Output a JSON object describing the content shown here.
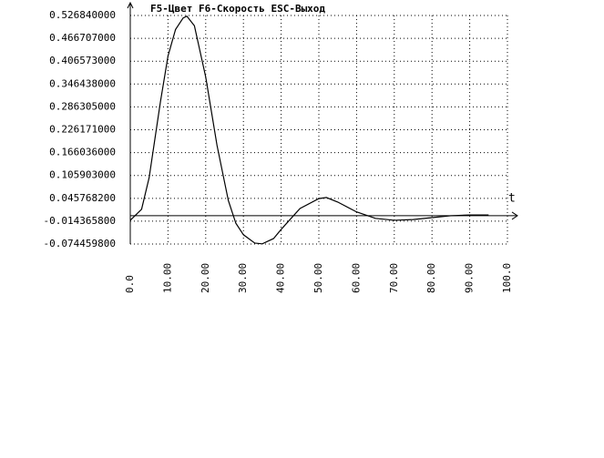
{
  "chart_data": {
    "type": "line",
    "title": "F5-Цвет  F6-Скорость  ESC-Выход",
    "x_label": "t",
    "x": [
      0,
      3,
      5,
      8,
      10,
      12,
      14,
      15,
      17,
      20,
      23,
      26,
      28,
      30,
      33,
      35,
      38,
      40,
      45,
      50,
      52,
      55,
      60,
      65,
      70,
      75,
      80,
      85,
      90,
      95
    ],
    "series": [
      {
        "color": "#000000",
        "values": [
          -0.012,
          0.017,
          0.1,
          0.3,
          0.42,
          0.49,
          0.52,
          0.525,
          0.5,
          0.365,
          0.185,
          0.04,
          -0.02,
          -0.05,
          -0.072,
          -0.074,
          -0.06,
          -0.036,
          0.019,
          0.045,
          0.048,
          0.036,
          0.01,
          -0.007,
          -0.012,
          -0.01,
          -0.005,
          0,
          0.002,
          0.002
        ]
      }
    ],
    "xlim": [
      0,
      100
    ],
    "ylim": [
      -0.0744598,
      0.52684
    ],
    "xticks": [
      {
        "value": 0,
        "label": "0.0"
      },
      {
        "value": 10,
        "label": "10.00"
      },
      {
        "value": 20,
        "label": "20.00"
      },
      {
        "value": 30,
        "label": "30.00"
      },
      {
        "value": 40,
        "label": "40.00"
      },
      {
        "value": 50,
        "label": "50.00"
      },
      {
        "value": 60,
        "label": "60.00"
      },
      {
        "value": 70,
        "label": "70.00"
      },
      {
        "value": 80,
        "label": "80.00"
      },
      {
        "value": 90,
        "label": "90.00"
      },
      {
        "value": 100,
        "label": "100.0"
      }
    ],
    "yticks": [
      {
        "value": 0.52684,
        "label": "0.526840000"
      },
      {
        "value": 0.466707,
        "label": "0.466707000"
      },
      {
        "value": 0.406573,
        "label": "0.406573000"
      },
      {
        "value": 0.346438,
        "label": "0.346438000"
      },
      {
        "value": 0.286305,
        "label": "0.286305000"
      },
      {
        "value": 0.226171,
        "label": "0.226171000"
      },
      {
        "value": 0.166036,
        "label": "0.166036000"
      },
      {
        "value": 0.105903,
        "label": "0.105903000"
      },
      {
        "value": 0.0457682,
        "label": "0.045768200"
      },
      {
        "value": -0.0143658,
        "label": "-0.014365800"
      },
      {
        "value": -0.0744598,
        "label": "-0.074459800"
      }
    ],
    "grid": true
  }
}
